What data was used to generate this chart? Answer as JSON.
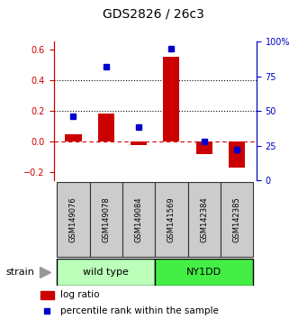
{
  "title": "GDS2826 / 26c3",
  "samples": [
    "GSM149076",
    "GSM149078",
    "GSM149084",
    "GSM141569",
    "GSM142384",
    "GSM142385"
  ],
  "log_ratios": [
    0.05,
    0.18,
    -0.02,
    0.55,
    -0.08,
    -0.17
  ],
  "percentile_ranks": [
    46,
    82,
    38,
    95,
    28,
    22
  ],
  "groups": [
    {
      "label": "wild type",
      "color": "#bbffbb",
      "start": 0,
      "end": 3
    },
    {
      "label": "NY1DD",
      "color": "#44ee44",
      "start": 3,
      "end": 6
    }
  ],
  "bar_color": "#cc0000",
  "point_color": "#0000cc",
  "ylim_left": [
    -0.25,
    0.65
  ],
  "ylim_right": [
    0,
    100
  ],
  "yticks_left": [
    -0.2,
    0.0,
    0.2,
    0.4,
    0.6
  ],
  "yticks_right": [
    0,
    25,
    50,
    75,
    100
  ],
  "hlines": [
    0.2,
    0.4
  ],
  "bar_width": 0.5,
  "xlabels_facecolor": "#cccccc",
  "xlabels_edgecolor": "#333333",
  "title_fontsize": 10,
  "tick_fontsize": 7,
  "sample_fontsize": 6,
  "strain_fontsize": 8,
  "legend_fontsize": 7.5
}
